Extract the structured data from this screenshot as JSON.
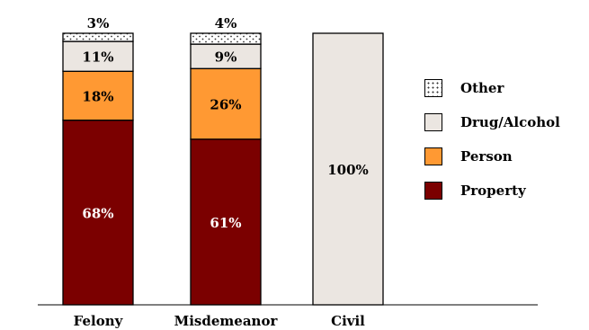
{
  "chart_data": {
    "type": "bar",
    "stacked": true,
    "title": "",
    "xlabel": "",
    "ylabel": "",
    "ylim": [
      0,
      100
    ],
    "grid": false,
    "legend_position": "right",
    "categories": [
      "Felony",
      "Misdemeanor",
      "Civil"
    ],
    "series": [
      {
        "name": "Property",
        "values": [
          68,
          61,
          0
        ],
        "color": "#7b0000",
        "label_color": "#ffffff"
      },
      {
        "name": "Person",
        "values": [
          18,
          26,
          0
        ],
        "color": "#ff9933",
        "label_color": "#000000"
      },
      {
        "name": "Drug/Alcohol",
        "values": [
          11,
          9,
          100
        ],
        "color": "#ebe6e1",
        "label_color": "#000000"
      },
      {
        "name": "Other",
        "values": [
          3,
          4,
          0
        ],
        "color": "#ffffff",
        "pattern": "dotted",
        "label_color": "#000000"
      }
    ],
    "data_labels": [
      [
        "68%",
        "61%",
        ""
      ],
      [
        "18%",
        "26%",
        ""
      ],
      [
        "11%",
        "9%",
        "100%"
      ],
      [
        "3%",
        "4%",
        ""
      ]
    ],
    "legend": [
      "Other",
      "Drug/Alcohol",
      "Person",
      "Property"
    ]
  }
}
